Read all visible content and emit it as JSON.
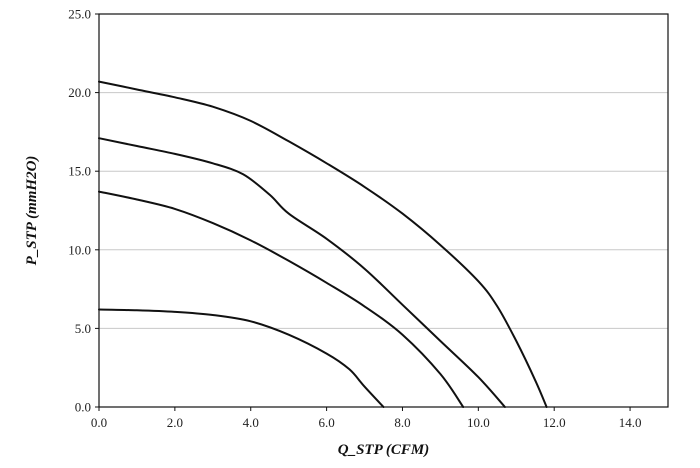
{
  "chart_data": {
    "type": "line",
    "xlabel": "Q_STP (CFM)",
    "ylabel": "P_STP (mmH2O)",
    "xlim": [
      0,
      15
    ],
    "ylim": [
      0,
      25
    ],
    "x_ticks": [
      "0.0",
      "2.0",
      "4.0",
      "6.0",
      "8.0",
      "10.0",
      "12.0",
      "14.0"
    ],
    "y_ticks": [
      "0.0",
      "5.0",
      "10.0",
      "15.0",
      "20.0",
      "25.0"
    ],
    "grid": "horizontal",
    "line_color": "#111111",
    "series": [
      {
        "x": [
          0,
          1,
          2,
          3,
          4,
          5,
          6,
          7,
          8,
          9,
          10,
          10.5,
          11,
          11.5,
          11.8
        ],
        "y": [
          20.7,
          20.2,
          19.7,
          19.1,
          18.2,
          16.9,
          15.5,
          14.0,
          12.3,
          10.3,
          8.0,
          6.4,
          4.2,
          1.7,
          0.0
        ]
      },
      {
        "x": [
          0,
          1,
          2,
          3,
          3.8,
          4.5,
          5,
          6,
          7,
          8,
          9,
          10,
          10.7
        ],
        "y": [
          17.1,
          16.6,
          16.1,
          15.5,
          14.8,
          13.5,
          12.3,
          10.7,
          8.8,
          6.5,
          4.2,
          1.9,
          0.0
        ]
      },
      {
        "x": [
          0,
          1,
          2,
          3,
          4,
          5,
          6,
          7,
          8,
          9,
          9.6
        ],
        "y": [
          13.7,
          13.2,
          12.6,
          11.7,
          10.6,
          9.3,
          7.9,
          6.4,
          4.6,
          2.1,
          0.0
        ]
      },
      {
        "x": [
          0,
          1,
          2,
          3,
          4,
          5,
          6,
          6.6,
          7,
          7.5
        ],
        "y": [
          6.2,
          6.15,
          6.05,
          5.85,
          5.45,
          4.6,
          3.4,
          2.4,
          1.3,
          0.0
        ]
      }
    ]
  }
}
